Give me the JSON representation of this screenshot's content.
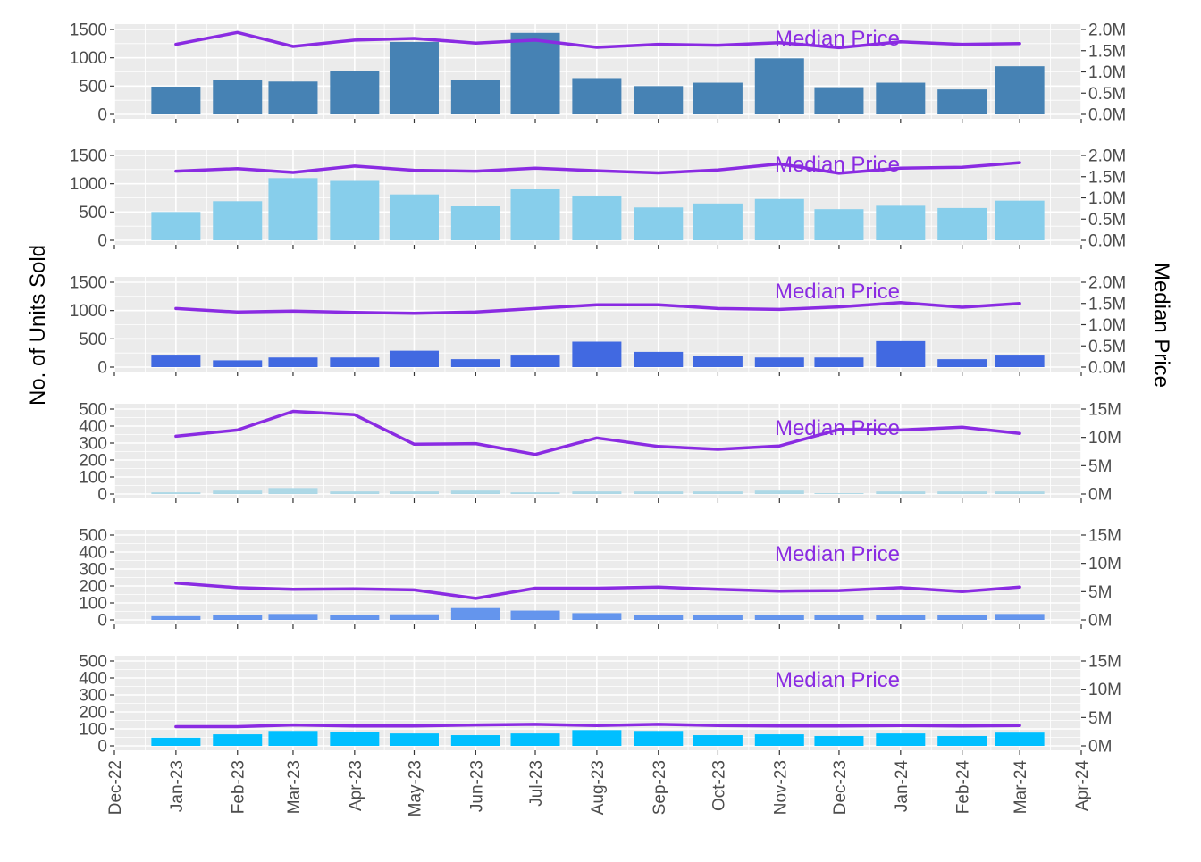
{
  "left_axis_title": "No. of Units Sold",
  "right_axis_title": "Median Price",
  "colors": {
    "panel_bg": "#EBEBEB",
    "grid": "#FFFFFF",
    "line": "#8A2BE2"
  },
  "chart_data": {
    "type": "bar",
    "x_ticks": [
      "Dec-22",
      "Jan-23",
      "Feb-23",
      "Mar-23",
      "Apr-23",
      "May-23",
      "Jun-23",
      "Jul-23",
      "Aug-23",
      "Sep-23",
      "Oct-23",
      "Nov-23",
      "Dec-23",
      "Jan-24",
      "Feb-24",
      "Mar-24",
      "Apr-24"
    ],
    "xlim": [
      "2022-12-01",
      "2024-04-01"
    ],
    "dates": [
      "2023-01-01",
      "2023-02-01",
      "2023-03-01",
      "2023-04-01",
      "2023-05-01",
      "2023-06-01",
      "2023-07-01",
      "2023-08-01",
      "2023-09-01",
      "2023-10-01",
      "2023-11-01",
      "2023-12-01",
      "2024-01-01",
      "2024-02-01",
      "2024-03-01"
    ],
    "panels": [
      {
        "bar_color": "#4682B4",
        "line_label": "Median Price",
        "y_left": {
          "lim": [
            0,
            1500
          ],
          "ticks": [
            "0",
            "500",
            "1000",
            "1500"
          ],
          "values": [
            0,
            500,
            1000,
            1500
          ]
        },
        "y_right": {
          "lim": [
            0,
            2000000
          ],
          "ticks": [
            "0.0M",
            "0.5M",
            "1.0M",
            "1.5M",
            "2.0M"
          ],
          "values": [
            0,
            500000,
            1000000,
            1500000,
            2000000
          ]
        },
        "units_sold": [
          490,
          600,
          580,
          770,
          1280,
          600,
          1440,
          640,
          500,
          560,
          990,
          480,
          560,
          440,
          850
        ],
        "median_price": [
          1650000,
          1930000,
          1600000,
          1750000,
          1790000,
          1680000,
          1750000,
          1580000,
          1650000,
          1630000,
          1690000,
          1570000,
          1710000,
          1650000,
          1670000
        ]
      },
      {
        "bar_color": "#87CEEB",
        "line_label": "Median Price",
        "y_left": {
          "lim": [
            0,
            1500
          ],
          "ticks": [
            "0",
            "500",
            "1000",
            "1500"
          ],
          "values": [
            0,
            500,
            1000,
            1500
          ]
        },
        "y_right": {
          "lim": [
            0,
            2000000
          ],
          "ticks": [
            "0.0M",
            "0.5M",
            "1.0M",
            "1.5M",
            "2.0M"
          ],
          "values": [
            0,
            500000,
            1000000,
            1500000,
            2000000
          ]
        },
        "units_sold": [
          500,
          690,
          1100,
          1050,
          810,
          600,
          900,
          790,
          580,
          650,
          730,
          550,
          610,
          570,
          700
        ],
        "median_price": [
          1630000,
          1690000,
          1600000,
          1750000,
          1650000,
          1630000,
          1700000,
          1640000,
          1590000,
          1660000,
          1800000,
          1580000,
          1700000,
          1720000,
          1830000
        ]
      },
      {
        "bar_color": "#4169E1",
        "line_label": "Median Price",
        "y_left": {
          "lim": [
            0,
            1500
          ],
          "ticks": [
            "0",
            "500",
            "1000",
            "1500"
          ],
          "values": [
            0,
            500,
            1000,
            1500
          ]
        },
        "y_right": {
          "lim": [
            0,
            2000000
          ],
          "ticks": [
            "0.0M",
            "0.5M",
            "1.0M",
            "1.5M",
            "2.0M"
          ],
          "values": [
            0,
            500000,
            1000000,
            1500000,
            2000000
          ]
        },
        "units_sold": [
          220,
          120,
          170,
          170,
          290,
          140,
          220,
          450,
          270,
          200,
          170,
          170,
          460,
          140,
          220
        ],
        "median_price": [
          1380000,
          1300000,
          1320000,
          1290000,
          1270000,
          1300000,
          1380000,
          1470000,
          1470000,
          1380000,
          1360000,
          1420000,
          1520000,
          1410000,
          1500000
        ]
      },
      {
        "bar_color": "#ADD8E6",
        "line_label": "Median Price",
        "y_left": {
          "lim": [
            0,
            500
          ],
          "ticks": [
            "0",
            "100",
            "200",
            "300",
            "400",
            "500"
          ],
          "values": [
            0,
            100,
            200,
            300,
            400,
            500
          ]
        },
        "y_right": {
          "lim": [
            0,
            15000000
          ],
          "ticks": [
            "0M",
            "5M",
            "10M",
            "15M"
          ],
          "values": [
            0,
            5000000,
            10000000,
            15000000
          ]
        },
        "units_sold": [
          10,
          20,
          35,
          15,
          15,
          20,
          10,
          15,
          15,
          15,
          20,
          5,
          15,
          15,
          15
        ],
        "median_price": [
          10200000,
          11300000,
          14600000,
          14000000,
          8800000,
          8900000,
          7000000,
          9900000,
          8400000,
          7900000,
          8500000,
          11400000,
          11300000,
          11800000,
          10700000
        ]
      },
      {
        "bar_color": "#6495ED",
        "line_label": "Median Price",
        "y_left": {
          "lim": [
            0,
            500
          ],
          "ticks": [
            "0",
            "100",
            "200",
            "300",
            "400",
            "500"
          ],
          "values": [
            0,
            100,
            200,
            300,
            400,
            500
          ]
        },
        "y_right": {
          "lim": [
            0,
            15000000
          ],
          "ticks": [
            "0M",
            "5M",
            "10M",
            "15M"
          ],
          "values": [
            0,
            5000000,
            10000000,
            15000000
          ]
        },
        "units_sold": [
          22,
          27,
          35,
          27,
          33,
          70,
          55,
          40,
          27,
          30,
          30,
          27,
          27,
          27,
          35
        ],
        "median_price": [
          6500000,
          5700000,
          5400000,
          5500000,
          5300000,
          3800000,
          5600000,
          5600000,
          5800000,
          5400000,
          5100000,
          5200000,
          5700000,
          5000000,
          5800000
        ]
      },
      {
        "bar_color": "#00BFFF",
        "line_label": "Median Price",
        "y_left": {
          "lim": [
            0,
            500
          ],
          "ticks": [
            "0",
            "100",
            "200",
            "300",
            "400",
            "500"
          ],
          "values": [
            0,
            100,
            200,
            300,
            400,
            500
          ]
        },
        "y_right": {
          "lim": [
            0,
            15000000
          ],
          "ticks": [
            "0M",
            "5M",
            "10M",
            "15M"
          ],
          "values": [
            0,
            5000000,
            10000000,
            15000000
          ]
        },
        "units_sold": [
          48,
          68,
          88,
          83,
          73,
          63,
          73,
          93,
          88,
          63,
          68,
          58,
          73,
          58,
          78
        ],
        "median_price": [
          3400000,
          3400000,
          3700000,
          3500000,
          3500000,
          3700000,
          3800000,
          3600000,
          3800000,
          3600000,
          3500000,
          3500000,
          3600000,
          3500000,
          3600000
        ]
      }
    ]
  }
}
